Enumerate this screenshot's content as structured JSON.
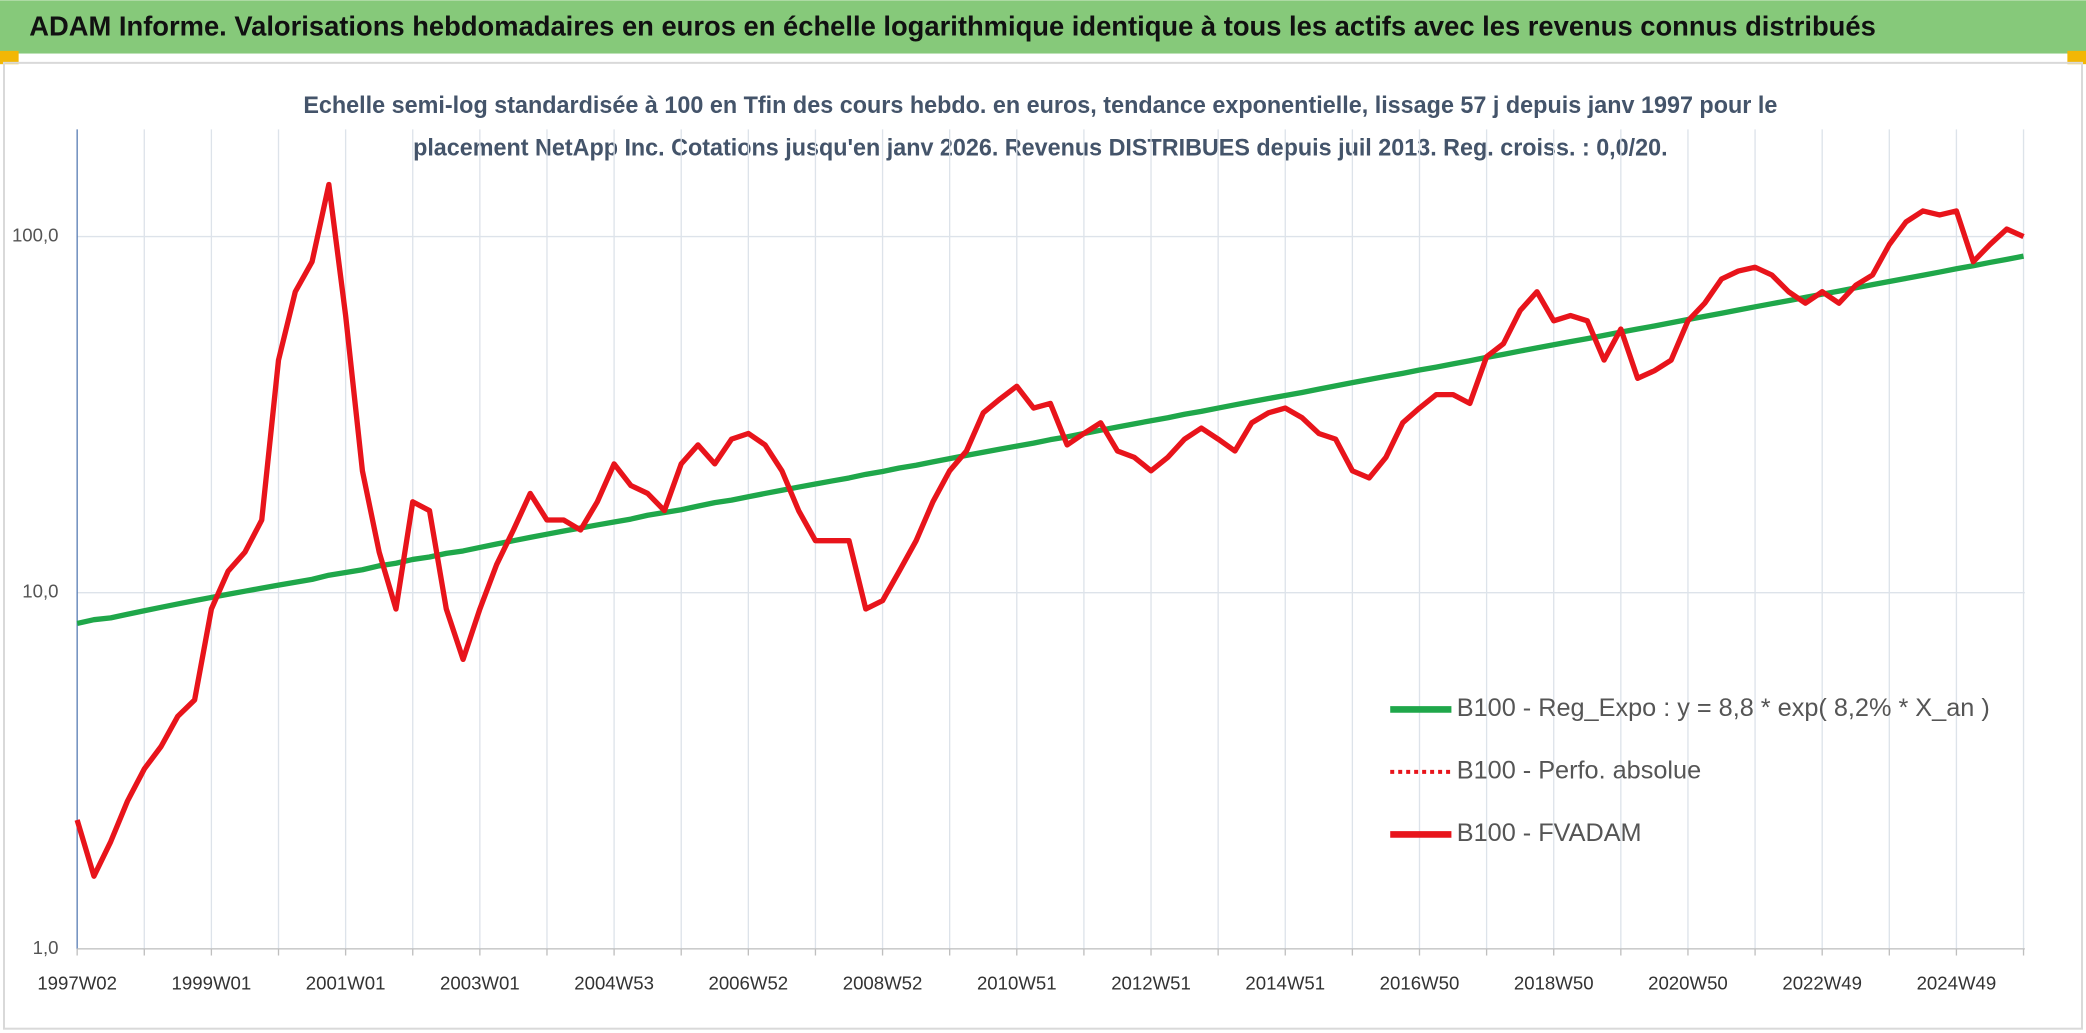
{
  "chart_data": {
    "type": "line",
    "title": "ADAM Informe. Valorisations hebdomadaires en euros en échelle logarithmique identique à tous les actifs avec les revenus connus distribués",
    "subtitle": [
      "Echelle semi-log standardisée à 100 en Tfin des cours hebdo. en euros, tendance exponentielle, lissage 57 j depuis janv 1997 pour le",
      "placement NetApp Inc. Cotations jusqu'en janv 2026. Revenus DISTRIBUES depuis juil 2013. Reg. croiss. : 0,0/20."
    ],
    "categories": [
      "1997W02",
      null,
      null,
      null,
      null,
      null,
      null,
      null,
      "1999W01",
      null,
      null,
      null,
      null,
      null,
      null,
      null,
      "2001W01",
      null,
      null,
      null,
      null,
      null,
      null,
      null,
      "2003W01",
      null,
      null,
      null,
      null,
      null,
      null,
      null,
      "2004W53",
      null,
      null,
      null,
      null,
      null,
      null,
      null,
      "2006W52",
      null,
      null,
      null,
      null,
      null,
      null,
      null,
      "2008W52",
      null,
      null,
      null,
      null,
      null,
      null,
      null,
      "2010W51",
      null,
      null,
      null,
      null,
      null,
      null,
      null,
      "2012W51",
      null,
      null,
      null,
      null,
      null,
      null,
      null,
      "2014W51",
      null,
      null,
      null,
      null,
      null,
      null,
      null,
      "2016W50",
      null,
      null,
      null,
      null,
      null,
      null,
      null,
      "2018W50",
      null,
      null,
      null,
      null,
      null,
      null,
      null,
      "2020W50",
      null,
      null,
      null,
      null,
      null,
      null,
      null,
      "2022W49",
      null,
      null,
      null,
      null,
      null,
      null,
      null,
      "2024W49",
      null,
      null,
      null,
      null
    ],
    "series": [
      {
        "name": "B100 - Reg_Expo : y = 8,8 * exp( 8,2% *  X_an )",
        "color": "#1fa74a",
        "style": "solid",
        "values": [
          8.2,
          8.4,
          8.5,
          8.7,
          8.9,
          9.1,
          9.3,
          9.5,
          9.7,
          9.9,
          10.1,
          10.3,
          10.5,
          10.7,
          10.9,
          11.2,
          11.4,
          11.6,
          11.9,
          12.1,
          12.4,
          12.6,
          12.9,
          13.1,
          13.4,
          13.7,
          14.0,
          14.3,
          14.6,
          14.9,
          15.2,
          15.5,
          15.8,
          16.1,
          16.5,
          16.8,
          17.1,
          17.5,
          17.9,
          18.2,
          18.6,
          19.0,
          19.4,
          19.8,
          20.2,
          20.6,
          21.0,
          21.5,
          21.9,
          22.4,
          22.8,
          23.3,
          23.8,
          24.3,
          24.8,
          25.3,
          25.8,
          26.3,
          26.9,
          27.4,
          28.0,
          28.6,
          29.2,
          29.8,
          30.4,
          31.0,
          31.7,
          32.3,
          33.0,
          33.7,
          34.4,
          35.1,
          35.8,
          36.5,
          37.3,
          38.1,
          38.9,
          39.7,
          40.5,
          41.3,
          42.2,
          43.0,
          43.9,
          44.8,
          45.8,
          46.7,
          47.7,
          48.7,
          49.7,
          50.7,
          51.7,
          52.8,
          53.9,
          55.0,
          56.1,
          57.3,
          58.5,
          59.7,
          60.9,
          62.2,
          63.5,
          64.8,
          66.1,
          67.5,
          68.9,
          70.3,
          71.8,
          73.3,
          74.8,
          76.3,
          77.9,
          79.5,
          81.2,
          82.8,
          84.6,
          86.3,
          88.1
        ]
      },
      {
        "name": "B100 - Perfo. absolue",
        "color": "#e8141b",
        "style": "dotted",
        "values": [
          2.3,
          1.6,
          2.0,
          2.6,
          3.2,
          3.7,
          4.5,
          5.0,
          9.0,
          11.5,
          13,
          16,
          45,
          70,
          85,
          140,
          60,
          22,
          13,
          9,
          18,
          17,
          9,
          6.5,
          9,
          12,
          15,
          19,
          16,
          16,
          15,
          18,
          23,
          20,
          19,
          17,
          23,
          26,
          23,
          27,
          28,
          26,
          22,
          17,
          14,
          14,
          14,
          9,
          9.5,
          11.5,
          14,
          18,
          22,
          25,
          32,
          35,
          38,
          33,
          34,
          26,
          28,
          30,
          25,
          24,
          22,
          24,
          27,
          29,
          27,
          25,
          30,
          32,
          33,
          31,
          28,
          27,
          22,
          21,
          24,
          30,
          33,
          36,
          36,
          34,
          46,
          50,
          62,
          70,
          58,
          60,
          58,
          45,
          55,
          40,
          42,
          45,
          58,
          65,
          76,
          80,
          82,
          78,
          70,
          65,
          70,
          65,
          73,
          78,
          95,
          110,
          118,
          115,
          118,
          85,
          95,
          105,
          100
        ]
      },
      {
        "name": "B100 - FVADAM",
        "color": "#e8141b",
        "style": "solid",
        "values": [
          2.3,
          1.6,
          2.0,
          2.6,
          3.2,
          3.7,
          4.5,
          5.0,
          9.0,
          11.5,
          13,
          16,
          45,
          70,
          85,
          140,
          60,
          22,
          13,
          9,
          18,
          17,
          9,
          6.5,
          9,
          12,
          15,
          19,
          16,
          16,
          15,
          18,
          23,
          20,
          19,
          17,
          23,
          26,
          23,
          27,
          28,
          26,
          22,
          17,
          14,
          14,
          14,
          9,
          9.5,
          11.5,
          14,
          18,
          22,
          25,
          32,
          35,
          38,
          33,
          34,
          26,
          28,
          30,
          25,
          24,
          22,
          24,
          27,
          29,
          27,
          25,
          30,
          32,
          33,
          31,
          28,
          27,
          22,
          21,
          24,
          30,
          33,
          36,
          36,
          34,
          46,
          50,
          62,
          70,
          58,
          60,
          58,
          45,
          55,
          40,
          42,
          45,
          58,
          65,
          76,
          80,
          82,
          78,
          70,
          65,
          70,
          65,
          73,
          78,
          95,
          110,
          118,
          115,
          118,
          85,
          95,
          105,
          100
        ]
      }
    ],
    "ylim": [
      1,
      200
    ],
    "yticks": [
      {
        "value": 1,
        "label": "1,0"
      },
      {
        "value": 10,
        "label": "10,0"
      },
      {
        "value": 100,
        "label": "100,0"
      }
    ],
    "log_scale": true,
    "grid": true,
    "legend": "right"
  }
}
